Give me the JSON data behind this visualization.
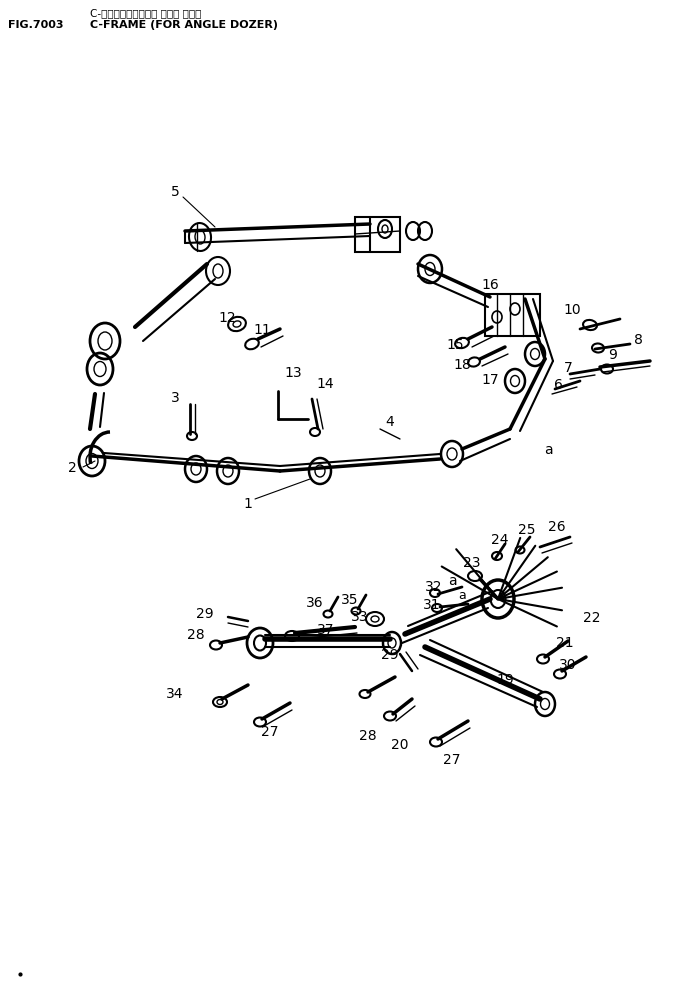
{
  "title_jp": "C-フレーム（アングル ドーザ ヨウ）",
  "title_en": "C-FRAME (FOR ANGLE DOZER)",
  "fig_num": "FIG.7003",
  "bg_color": "#ffffff",
  "lc": "#000000",
  "tc": "#000000",
  "fig_width": 6.85,
  "fig_height": 9.95
}
